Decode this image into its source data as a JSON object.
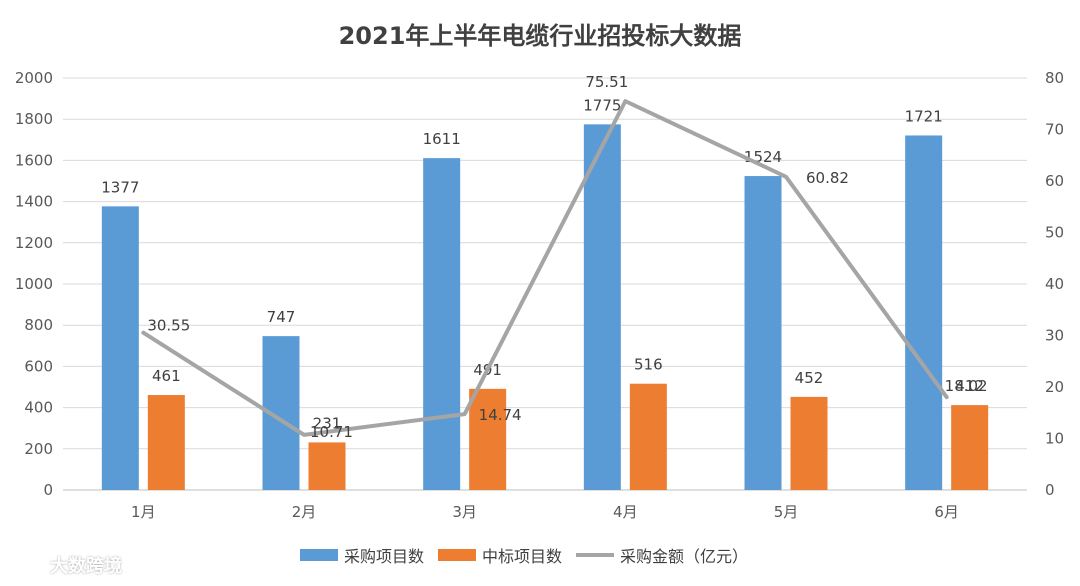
{
  "chart_data": {
    "type": "bar",
    "title": "2021年上半年电缆行业招投标大数据",
    "categories": [
      "1月",
      "2月",
      "3月",
      "4月",
      "5月",
      "6月"
    ],
    "series": [
      {
        "name": "采购项目数",
        "type": "bar",
        "axis": "left",
        "color": "#5B9BD5",
        "values": [
          1377,
          747,
          1611,
          1775,
          1524,
          1721
        ]
      },
      {
        "name": "中标项目数",
        "type": "bar",
        "axis": "left",
        "color": "#ED7D31",
        "values": [
          461,
          231,
          491,
          516,
          452,
          412
        ]
      },
      {
        "name": "采购金额（亿元）",
        "type": "line",
        "axis": "right",
        "color": "#A5A5A5",
        "values": [
          30.55,
          10.71,
          14.74,
          75.51,
          60.82,
          18.02
        ]
      }
    ],
    "ylim_left": [
      0,
      2000
    ],
    "yticks_left": [
      0,
      200,
      400,
      600,
      800,
      1000,
      1200,
      1400,
      1600,
      1800,
      2000
    ],
    "ylim_right": [
      0,
      80
    ],
    "yticks_right": [
      0,
      10,
      20,
      30,
      40,
      50,
      60,
      70,
      80
    ],
    "grid": true,
    "legend_position": "bottom"
  },
  "watermark": {
    "text": "大数跨境",
    "icon": "brand-logo-icon"
  }
}
